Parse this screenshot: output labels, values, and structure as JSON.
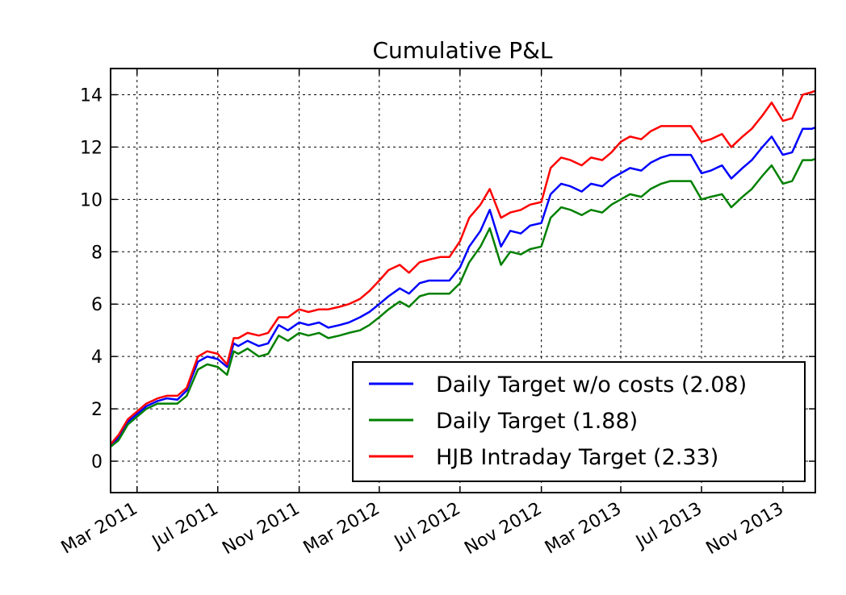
{
  "chart_data": {
    "type": "line",
    "title": "Cumulative P&L",
    "xlabel": "",
    "ylabel": "",
    "x_type": "date",
    "xlim": [
      "2011-01-20",
      "2013-12-20"
    ],
    "ylim": [
      -1.2,
      15
    ],
    "grid": true,
    "legend_position": "lower-right",
    "x_ticks": [
      {
        "date": "2011-03-01",
        "label": "Mar 2011"
      },
      {
        "date": "2011-07-01",
        "label": "Jul 2011"
      },
      {
        "date": "2011-11-01",
        "label": "Nov 2011"
      },
      {
        "date": "2012-03-01",
        "label": "Mar 2012"
      },
      {
        "date": "2012-07-01",
        "label": "Jul 2012"
      },
      {
        "date": "2012-11-01",
        "label": "Nov 2012"
      },
      {
        "date": "2013-03-01",
        "label": "Mar 2013"
      },
      {
        "date": "2013-07-01",
        "label": "Jul 2013"
      },
      {
        "date": "2013-11-01",
        "label": "Nov 2013"
      }
    ],
    "y_ticks": [
      {
        "value": 0,
        "label": "0"
      },
      {
        "value": 2,
        "label": "2"
      },
      {
        "value": 4,
        "label": "4"
      },
      {
        "value": 6,
        "label": "6"
      },
      {
        "value": 8,
        "label": "8"
      },
      {
        "value": 10,
        "label": "10"
      },
      {
        "value": 12,
        "label": "12"
      },
      {
        "value": 14,
        "label": "14"
      }
    ],
    "x": [
      "2011-01-20",
      "2011-02-01",
      "2011-02-15",
      "2011-03-01",
      "2011-03-15",
      "2011-04-01",
      "2011-04-15",
      "2011-05-01",
      "2011-05-15",
      "2011-06-01",
      "2011-06-15",
      "2011-07-01",
      "2011-07-15",
      "2011-07-25",
      "2011-08-01",
      "2011-08-15",
      "2011-09-01",
      "2011-09-15",
      "2011-10-01",
      "2011-10-15",
      "2011-11-01",
      "2011-11-15",
      "2011-12-01",
      "2011-12-15",
      "2012-01-01",
      "2012-01-15",
      "2012-02-01",
      "2012-02-15",
      "2012-03-01",
      "2012-03-15",
      "2012-04-01",
      "2012-04-15",
      "2012-05-01",
      "2012-05-15",
      "2012-06-01",
      "2012-06-15",
      "2012-07-01",
      "2012-07-15",
      "2012-08-01",
      "2012-08-15",
      "2012-09-01",
      "2012-09-15",
      "2012-10-01",
      "2012-10-15",
      "2012-11-01",
      "2012-11-15",
      "2012-12-01",
      "2012-12-15",
      "2013-01-01",
      "2013-01-15",
      "2013-02-01",
      "2013-02-15",
      "2013-03-01",
      "2013-03-15",
      "2013-04-01",
      "2013-04-15",
      "2013-05-01",
      "2013-05-15",
      "2013-06-01",
      "2013-06-15",
      "2013-07-01",
      "2013-07-15",
      "2013-08-01",
      "2013-08-15",
      "2013-09-01",
      "2013-09-15",
      "2013-10-01",
      "2013-10-15",
      "2013-11-01",
      "2013-11-15",
      "2013-12-01",
      "2013-12-15",
      "2013-12-20"
    ],
    "series": [
      {
        "name": "Daily Target w/o costs (2.08)",
        "color": "#0000ff",
        "values": [
          0.6,
          0.9,
          1.5,
          1.8,
          2.1,
          2.3,
          2.4,
          2.35,
          2.7,
          3.8,
          4.0,
          3.9,
          3.6,
          4.5,
          4.4,
          4.6,
          4.4,
          4.5,
          5.2,
          5.0,
          5.3,
          5.2,
          5.3,
          5.1,
          5.2,
          5.3,
          5.5,
          5.7,
          6.0,
          6.3,
          6.6,
          6.4,
          6.8,
          6.9,
          6.9,
          6.9,
          7.4,
          8.2,
          8.8,
          9.6,
          8.2,
          8.8,
          8.7,
          9.0,
          9.1,
          10.2,
          10.6,
          10.5,
          10.3,
          10.6,
          10.5,
          10.8,
          11.0,
          11.2,
          11.1,
          11.4,
          11.6,
          11.7,
          11.7,
          11.7,
          11.0,
          11.1,
          11.3,
          10.8,
          11.2,
          11.5,
          12.0,
          12.4,
          11.7,
          11.8,
          12.7,
          12.7,
          12.75
        ]
      },
      {
        "name": "Daily Target (1.88)",
        "color": "#008000",
        "values": [
          0.55,
          0.8,
          1.4,
          1.7,
          2.0,
          2.2,
          2.2,
          2.2,
          2.5,
          3.5,
          3.7,
          3.6,
          3.3,
          4.2,
          4.1,
          4.3,
          4.0,
          4.1,
          4.8,
          4.6,
          4.9,
          4.8,
          4.9,
          4.7,
          4.8,
          4.9,
          5.0,
          5.2,
          5.5,
          5.8,
          6.1,
          5.9,
          6.3,
          6.4,
          6.4,
          6.4,
          6.8,
          7.6,
          8.2,
          8.9,
          7.5,
          8.0,
          7.9,
          8.1,
          8.2,
          9.3,
          9.7,
          9.6,
          9.4,
          9.6,
          9.5,
          9.8,
          10.0,
          10.2,
          10.1,
          10.4,
          10.6,
          10.7,
          10.7,
          10.7,
          10.0,
          10.1,
          10.2,
          9.7,
          10.1,
          10.4,
          10.9,
          11.3,
          10.6,
          10.7,
          11.5,
          11.5,
          11.55
        ]
      },
      {
        "name": "HJB Intraday Target (2.33)",
        "color": "#ff0000",
        "values": [
          0.65,
          1.0,
          1.6,
          1.9,
          2.2,
          2.4,
          2.5,
          2.5,
          2.8,
          4.0,
          4.2,
          4.1,
          3.7,
          4.7,
          4.7,
          4.9,
          4.8,
          4.9,
          5.5,
          5.5,
          5.8,
          5.7,
          5.8,
          5.8,
          5.9,
          6.0,
          6.2,
          6.5,
          6.9,
          7.3,
          7.5,
          7.2,
          7.6,
          7.7,
          7.8,
          7.8,
          8.4,
          9.3,
          9.8,
          10.4,
          9.3,
          9.5,
          9.6,
          9.8,
          9.9,
          11.2,
          11.6,
          11.5,
          11.3,
          11.6,
          11.5,
          11.8,
          12.2,
          12.4,
          12.3,
          12.6,
          12.8,
          12.8,
          12.8,
          12.8,
          12.2,
          12.3,
          12.5,
          12.0,
          12.4,
          12.7,
          13.2,
          13.7,
          13.0,
          13.1,
          14.0,
          14.1,
          14.15
        ]
      }
    ]
  }
}
